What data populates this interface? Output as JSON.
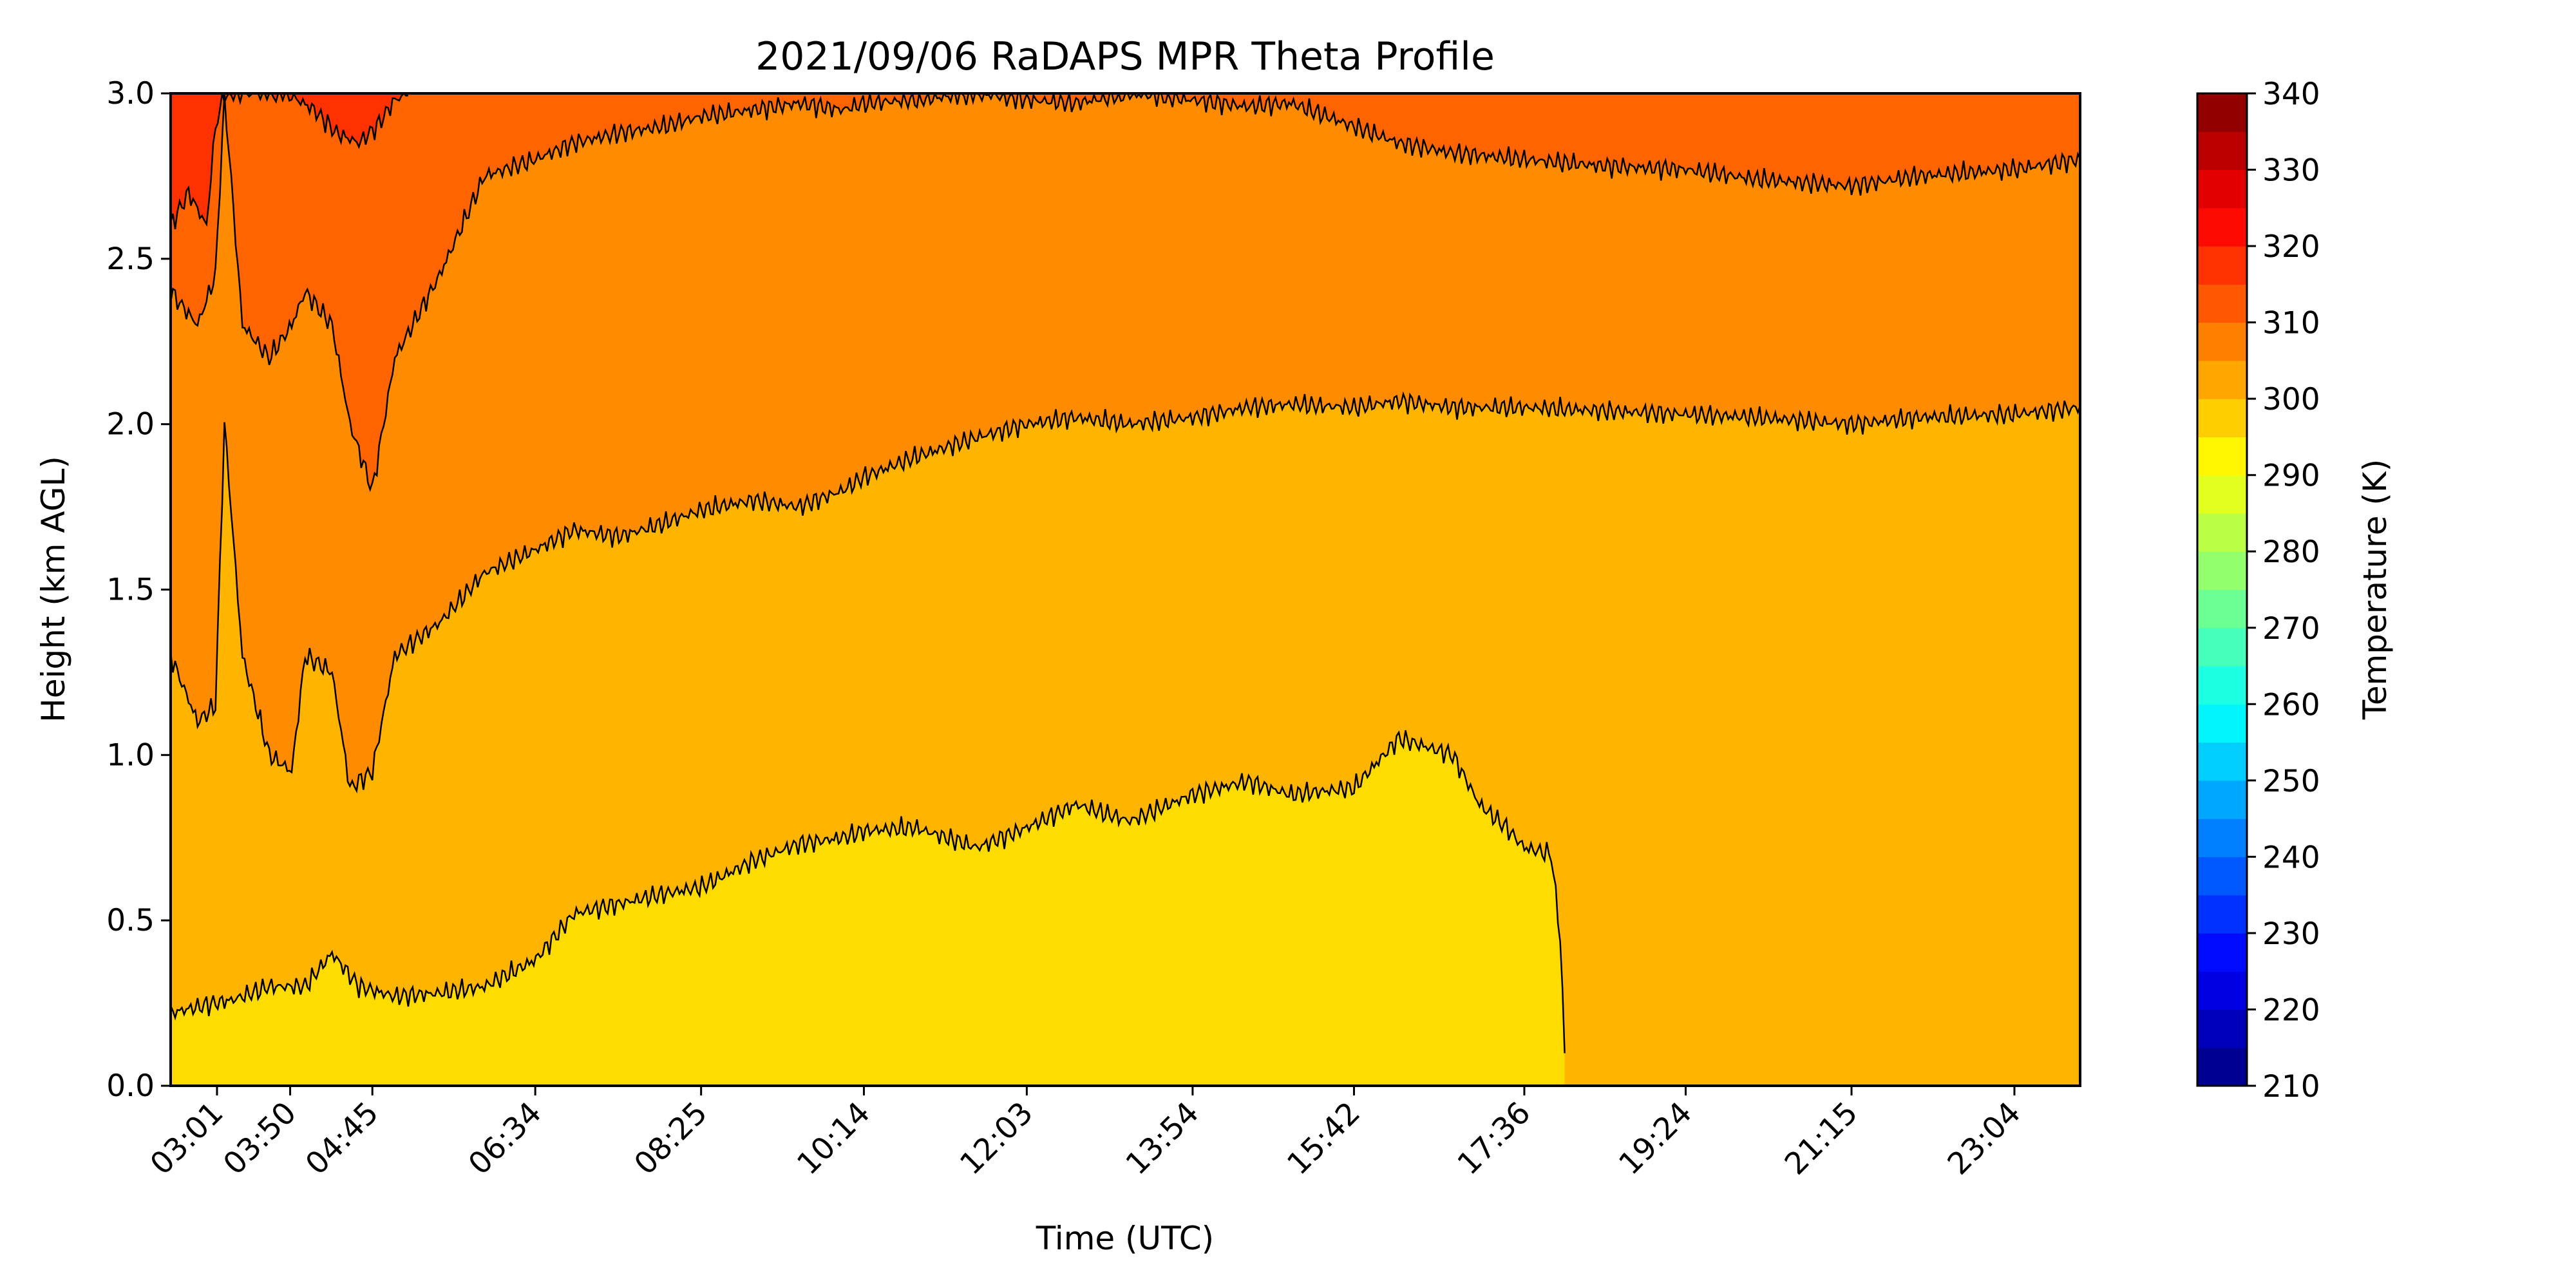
{
  "chart_data": {
    "type": "heatmap",
    "subtype": "filled-contour",
    "title": "2021/09/06 RaDAPS MPR Theta Profile",
    "xlabel": "Time (UTC)",
    "ylabel": "Height (km AGL)",
    "colorbar_label": "Temperature (K)",
    "colormap": "jet",
    "x_tick_labels": [
      "03:01",
      "03:50",
      "04:45",
      "06:34",
      "08:25",
      "10:14",
      "12:03",
      "13:54",
      "15:42",
      "17:36",
      "19:24",
      "21:15",
      "23:04"
    ],
    "x_tick_hours": [
      3.017,
      3.833,
      4.75,
      6.567,
      8.417,
      10.233,
      12.05,
      13.9,
      15.7,
      17.6,
      19.4,
      21.25,
      23.067
    ],
    "xlim_hours": [
      2.5,
      23.8
    ],
    "ylim": [
      0,
      3.0
    ],
    "y_ticks": [
      0.0,
      0.5,
      1.0,
      1.5,
      2.0,
      2.5,
      3.0
    ],
    "y_tick_labels": [
      "0.0",
      "0.5",
      "1.0",
      "1.5",
      "2.0",
      "2.5",
      "3.0"
    ],
    "colorbar_range": [
      210,
      340
    ],
    "colorbar_step": 5,
    "colorbar_ticks": [
      210,
      220,
      230,
      240,
      250,
      260,
      270,
      280,
      290,
      300,
      310,
      320,
      330,
      340
    ],
    "colorbar_tick_labels": [
      "210",
      "220",
      "230",
      "240",
      "250",
      "260",
      "270",
      "280",
      "290",
      "300",
      "310",
      "320",
      "330",
      "340"
    ],
    "band_colors": {
      "295-300": "#ffdc00",
      "300-305": "#ffb400",
      "305-310": "#ff8c00",
      "310-315": "#ff6400"
    },
    "contour_levels": [
      {
        "level": 300,
        "x_hours": [
          2.5,
          3.0,
          3.2,
          3.6,
          4.0,
          4.3,
          4.6,
          5.0,
          5.5,
          6.0,
          6.567,
          7.0,
          7.5,
          8.0,
          8.417,
          9.0,
          9.5,
          10.0,
          10.233,
          10.8,
          11.5,
          12.05,
          12.6,
          13.2,
          13.9,
          14.5,
          15.0,
          15.7,
          16.2,
          16.8,
          17.1,
          17.4,
          17.6,
          17.9,
          18.0,
          18.05
        ],
        "heights_km": [
          0.22,
          0.25,
          0.26,
          0.3,
          0.3,
          0.4,
          0.3,
          0.27,
          0.28,
          0.3,
          0.38,
          0.52,
          0.55,
          0.58,
          0.6,
          0.68,
          0.73,
          0.75,
          0.77,
          0.78,
          0.72,
          0.78,
          0.85,
          0.8,
          0.88,
          0.92,
          0.88,
          0.9,
          1.05,
          1.0,
          0.85,
          0.78,
          0.72,
          0.7,
          0.45,
          0.1
        ]
      },
      {
        "level": 305,
        "x_hours": [
          2.5,
          2.8,
          3.0,
          3.1,
          3.3,
          3.6,
          3.85,
          4.0,
          4.3,
          4.5,
          4.75,
          5.0,
          5.5,
          6.0,
          6.567,
          7.0,
          7.5,
          8.0,
          8.417,
          9.0,
          9.5,
          10.0,
          10.233,
          10.8,
          11.5,
          12.05,
          12.6,
          13.2,
          13.9,
          14.5,
          15.0,
          15.7,
          16.2,
          16.8,
          17.6,
          18.5,
          19.4,
          20.2,
          21.25,
          22.0,
          23.067,
          23.8
        ],
        "heights_km": [
          1.3,
          1.1,
          1.15,
          2.0,
          1.3,
          1.0,
          0.95,
          1.3,
          1.25,
          0.9,
          0.95,
          1.3,
          1.4,
          1.55,
          1.62,
          1.68,
          1.66,
          1.7,
          1.74,
          1.77,
          1.75,
          1.8,
          1.84,
          1.9,
          1.96,
          2.0,
          2.02,
          2.0,
          2.02,
          2.05,
          2.06,
          2.05,
          2.07,
          2.05,
          2.05,
          2.04,
          2.03,
          2.02,
          2.0,
          2.02,
          2.03,
          2.05
        ]
      },
      {
        "level": 310,
        "x_hours": [
          2.5,
          2.8,
          3.0,
          3.1,
          3.3,
          3.6,
          3.85,
          4.0,
          4.3,
          4.5,
          4.75,
          5.0,
          5.5,
          6.0,
          6.567,
          7.0,
          7.5,
          8.0,
          8.417,
          9.0,
          9.5,
          10.0,
          10.233,
          10.8,
          11.5,
          12.05,
          12.6,
          13.2,
          13.9,
          14.5,
          15.0,
          15.7,
          16.2,
          16.8,
          17.6,
          18.5,
          19.4,
          20.2,
          21.25,
          22.0,
          23.067,
          23.8
        ],
        "heights_km": [
          2.4,
          2.3,
          2.45,
          3.0,
          2.3,
          2.2,
          2.3,
          2.4,
          2.3,
          2.0,
          1.8,
          2.2,
          2.45,
          2.75,
          2.8,
          2.85,
          2.88,
          2.9,
          2.93,
          2.95,
          2.97,
          2.95,
          2.97,
          2.98,
          3.0,
          2.98,
          2.97,
          3.0,
          2.98,
          2.96,
          2.97,
          2.9,
          2.85,
          2.82,
          2.8,
          2.78,
          2.77,
          2.74,
          2.72,
          2.75,
          2.77,
          2.8
        ]
      },
      {
        "level": 315,
        "x_hours": [
          2.5,
          2.7,
          2.9,
          3.0,
          3.1,
          3.3,
          3.5,
          3.8,
          4.1,
          4.35,
          4.6,
          4.8,
          5.0,
          5.15
        ],
        "heights_km": [
          2.6,
          2.7,
          2.6,
          2.9,
          3.0,
          3.0,
          3.0,
          3.0,
          2.95,
          2.88,
          2.85,
          2.9,
          2.98,
          3.0
        ]
      }
    ]
  }
}
